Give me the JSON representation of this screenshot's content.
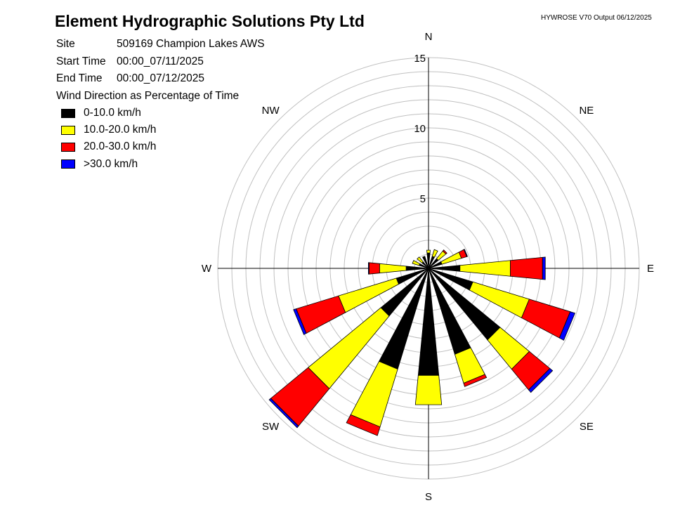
{
  "header": {
    "title": "Element Hydrographic Solutions Pty Ltd",
    "version": "HYWROSE V70  Output 06/12/2025"
  },
  "info": {
    "site_label": "Site",
    "site_value": "509169  Champion Lakes AWS",
    "start_label": "Start Time",
    "start_value": "00:00_07/11/2025",
    "end_label": "End Time",
    "end_value": "00:00_07/12/2025",
    "subtitle": "Wind Direction as Percentage of Time"
  },
  "chart_data": {
    "type": "wind-rose",
    "title": "Wind Direction as Percentage of Time",
    "unit": "% of time",
    "radial_range": [
      0,
      15
    ],
    "radial_ticks": [
      5,
      10,
      15
    ],
    "grid_rings_every": 1,
    "grid": true,
    "legend_placement": "top-left",
    "compass_labels": [
      "N",
      "NE",
      "E",
      "SE",
      "S",
      "SW",
      "W",
      "NW"
    ],
    "directions": [
      "N",
      "NNE",
      "NE",
      "ENE",
      "E",
      "ESE",
      "SE",
      "SSE",
      "S",
      "SSW",
      "SW",
      "WSW",
      "W",
      "WNW",
      "NW",
      "NNW"
    ],
    "series": [
      {
        "name": "0-10.0 km/h",
        "color": "#000000",
        "values": [
          1.1,
          0.9,
          0.9,
          1.0,
          2.25,
          3.3,
          6.6,
          6.4,
          7.65,
          7.5,
          4.4,
          2.4,
          1.6,
          0.7,
          0.6,
          0.9
        ]
      },
      {
        "name": "10.0-20.0 km/h",
        "color": "#ffff00",
        "values": [
          0.2,
          0.5,
          0.7,
          1.45,
          3.6,
          4.2,
          2.7,
          2.15,
          2.1,
          4.3,
          6.7,
          4.3,
          1.9,
          0.5,
          0.45,
          0.0
        ]
      },
      {
        "name": "20.0-30.0 km/h",
        "color": "#ff0000",
        "values": [
          0.0,
          0.0,
          0.1,
          0.4,
          2.3,
          3.05,
          1.9,
          0.25,
          0.0,
          0.65,
          3.45,
          3.15,
          0.75,
          0.0,
          0.0,
          0.0
        ]
      },
      {
        "name": ">30.0 km/h",
        "color": "#0000ff",
        "values": [
          0.0,
          0.0,
          0.0,
          0.05,
          0.2,
          0.35,
          0.25,
          0.0,
          0.0,
          0.0,
          0.15,
          0.2,
          0.05,
          0.0,
          0.0,
          0.0
        ]
      }
    ]
  }
}
